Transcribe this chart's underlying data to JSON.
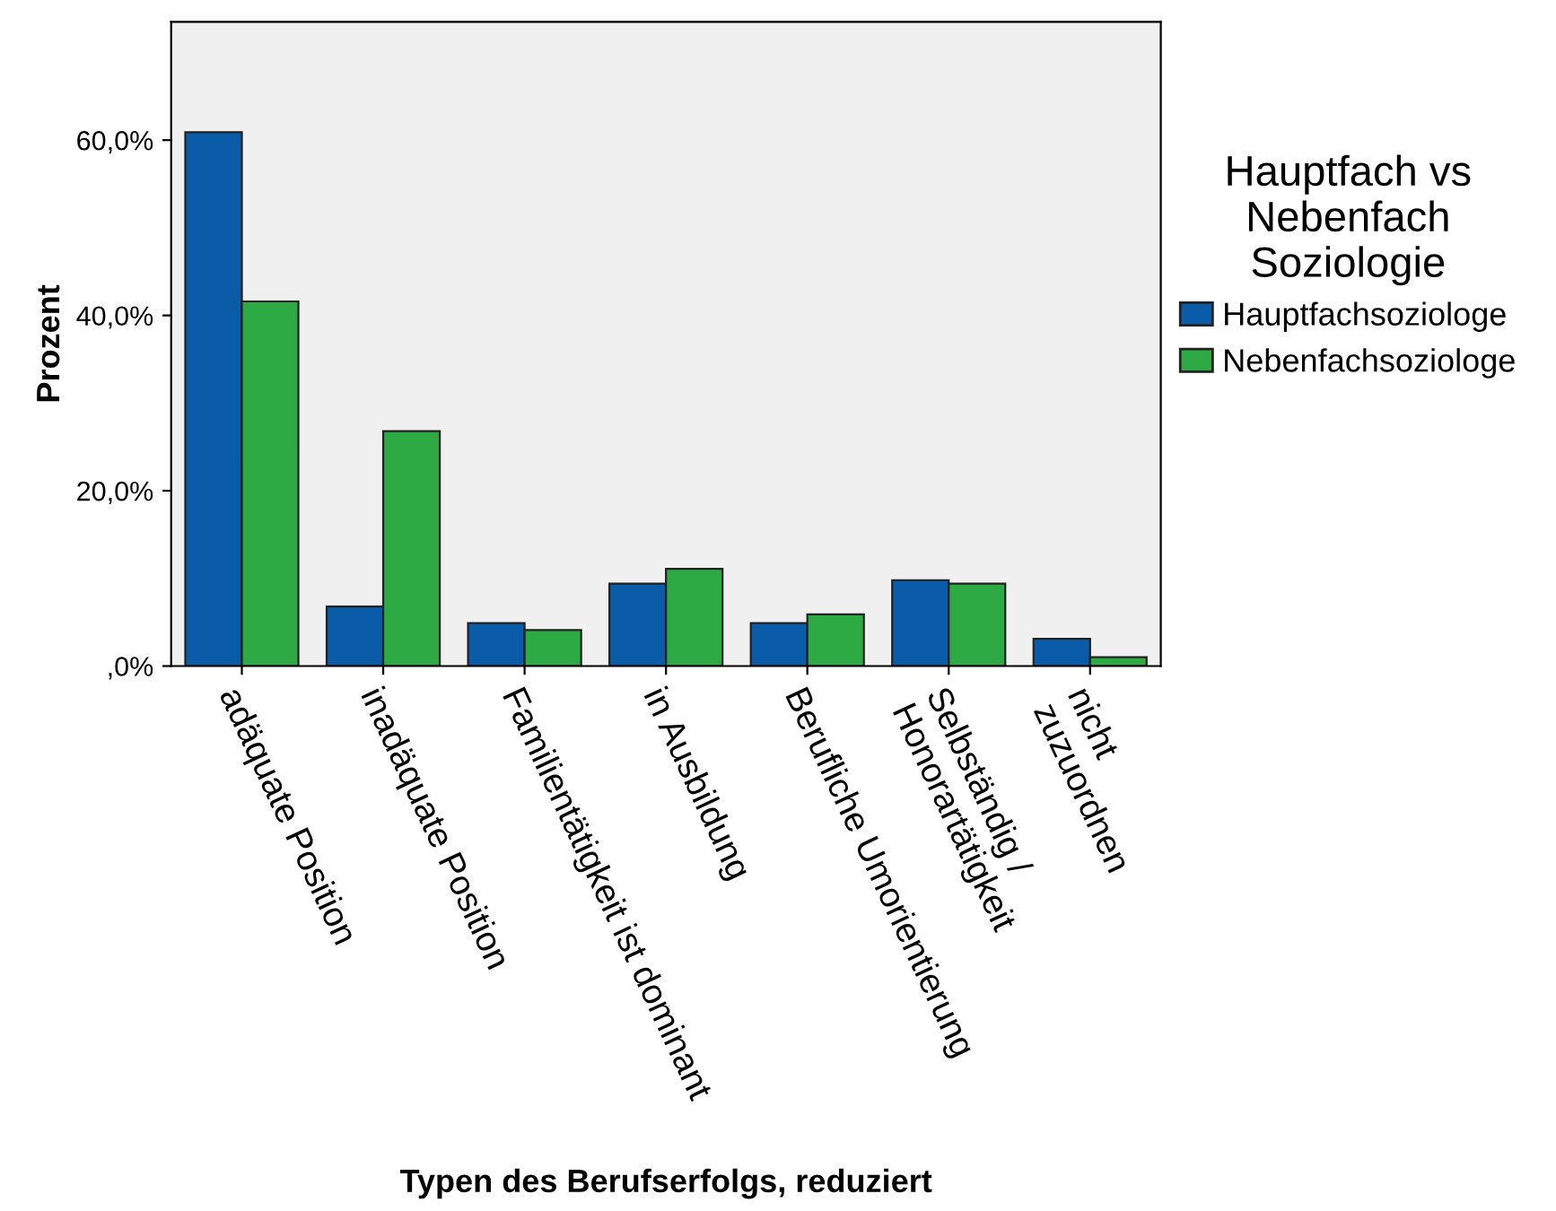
{
  "chart_data": {
    "type": "bar",
    "xlabel": "Typen des Berufserfolgs, reduziert",
    "ylabel": "Prozent",
    "legend_title": "Hauptfach vs\nNebenfach\nSoziologie",
    "legend": "right",
    "grid": false,
    "categories": [
      "adäquate Position",
      "inadäquate Position",
      "Familientätigkeit ist dominant",
      "in Ausbildung",
      "Berufliche Umorientierung",
      "Selbständig /\nHonorartätigkeit",
      "nicht\nzuzuordnen"
    ],
    "series": [
      {
        "name": "Hauptfachsoziologe",
        "color": "#0a5ca8",
        "values": [
          60.9,
          6.8,
          4.9,
          9.4,
          4.9,
          9.8,
          3.1
        ]
      },
      {
        "name": "Nebenfachsoziologe",
        "color": "#2eaa44",
        "values": [
          41.6,
          26.8,
          4.1,
          11.1,
          5.9,
          9.4,
          1.0
        ]
      }
    ],
    "ylim": [
      0,
      73.5
    ],
    "yticks": [
      {
        "value": 0,
        "label": ",0%"
      },
      {
        "value": 20,
        "label": "20,0%"
      },
      {
        "value": 40,
        "label": "40,0%"
      },
      {
        "value": 60,
        "label": "60,0%"
      }
    ]
  }
}
